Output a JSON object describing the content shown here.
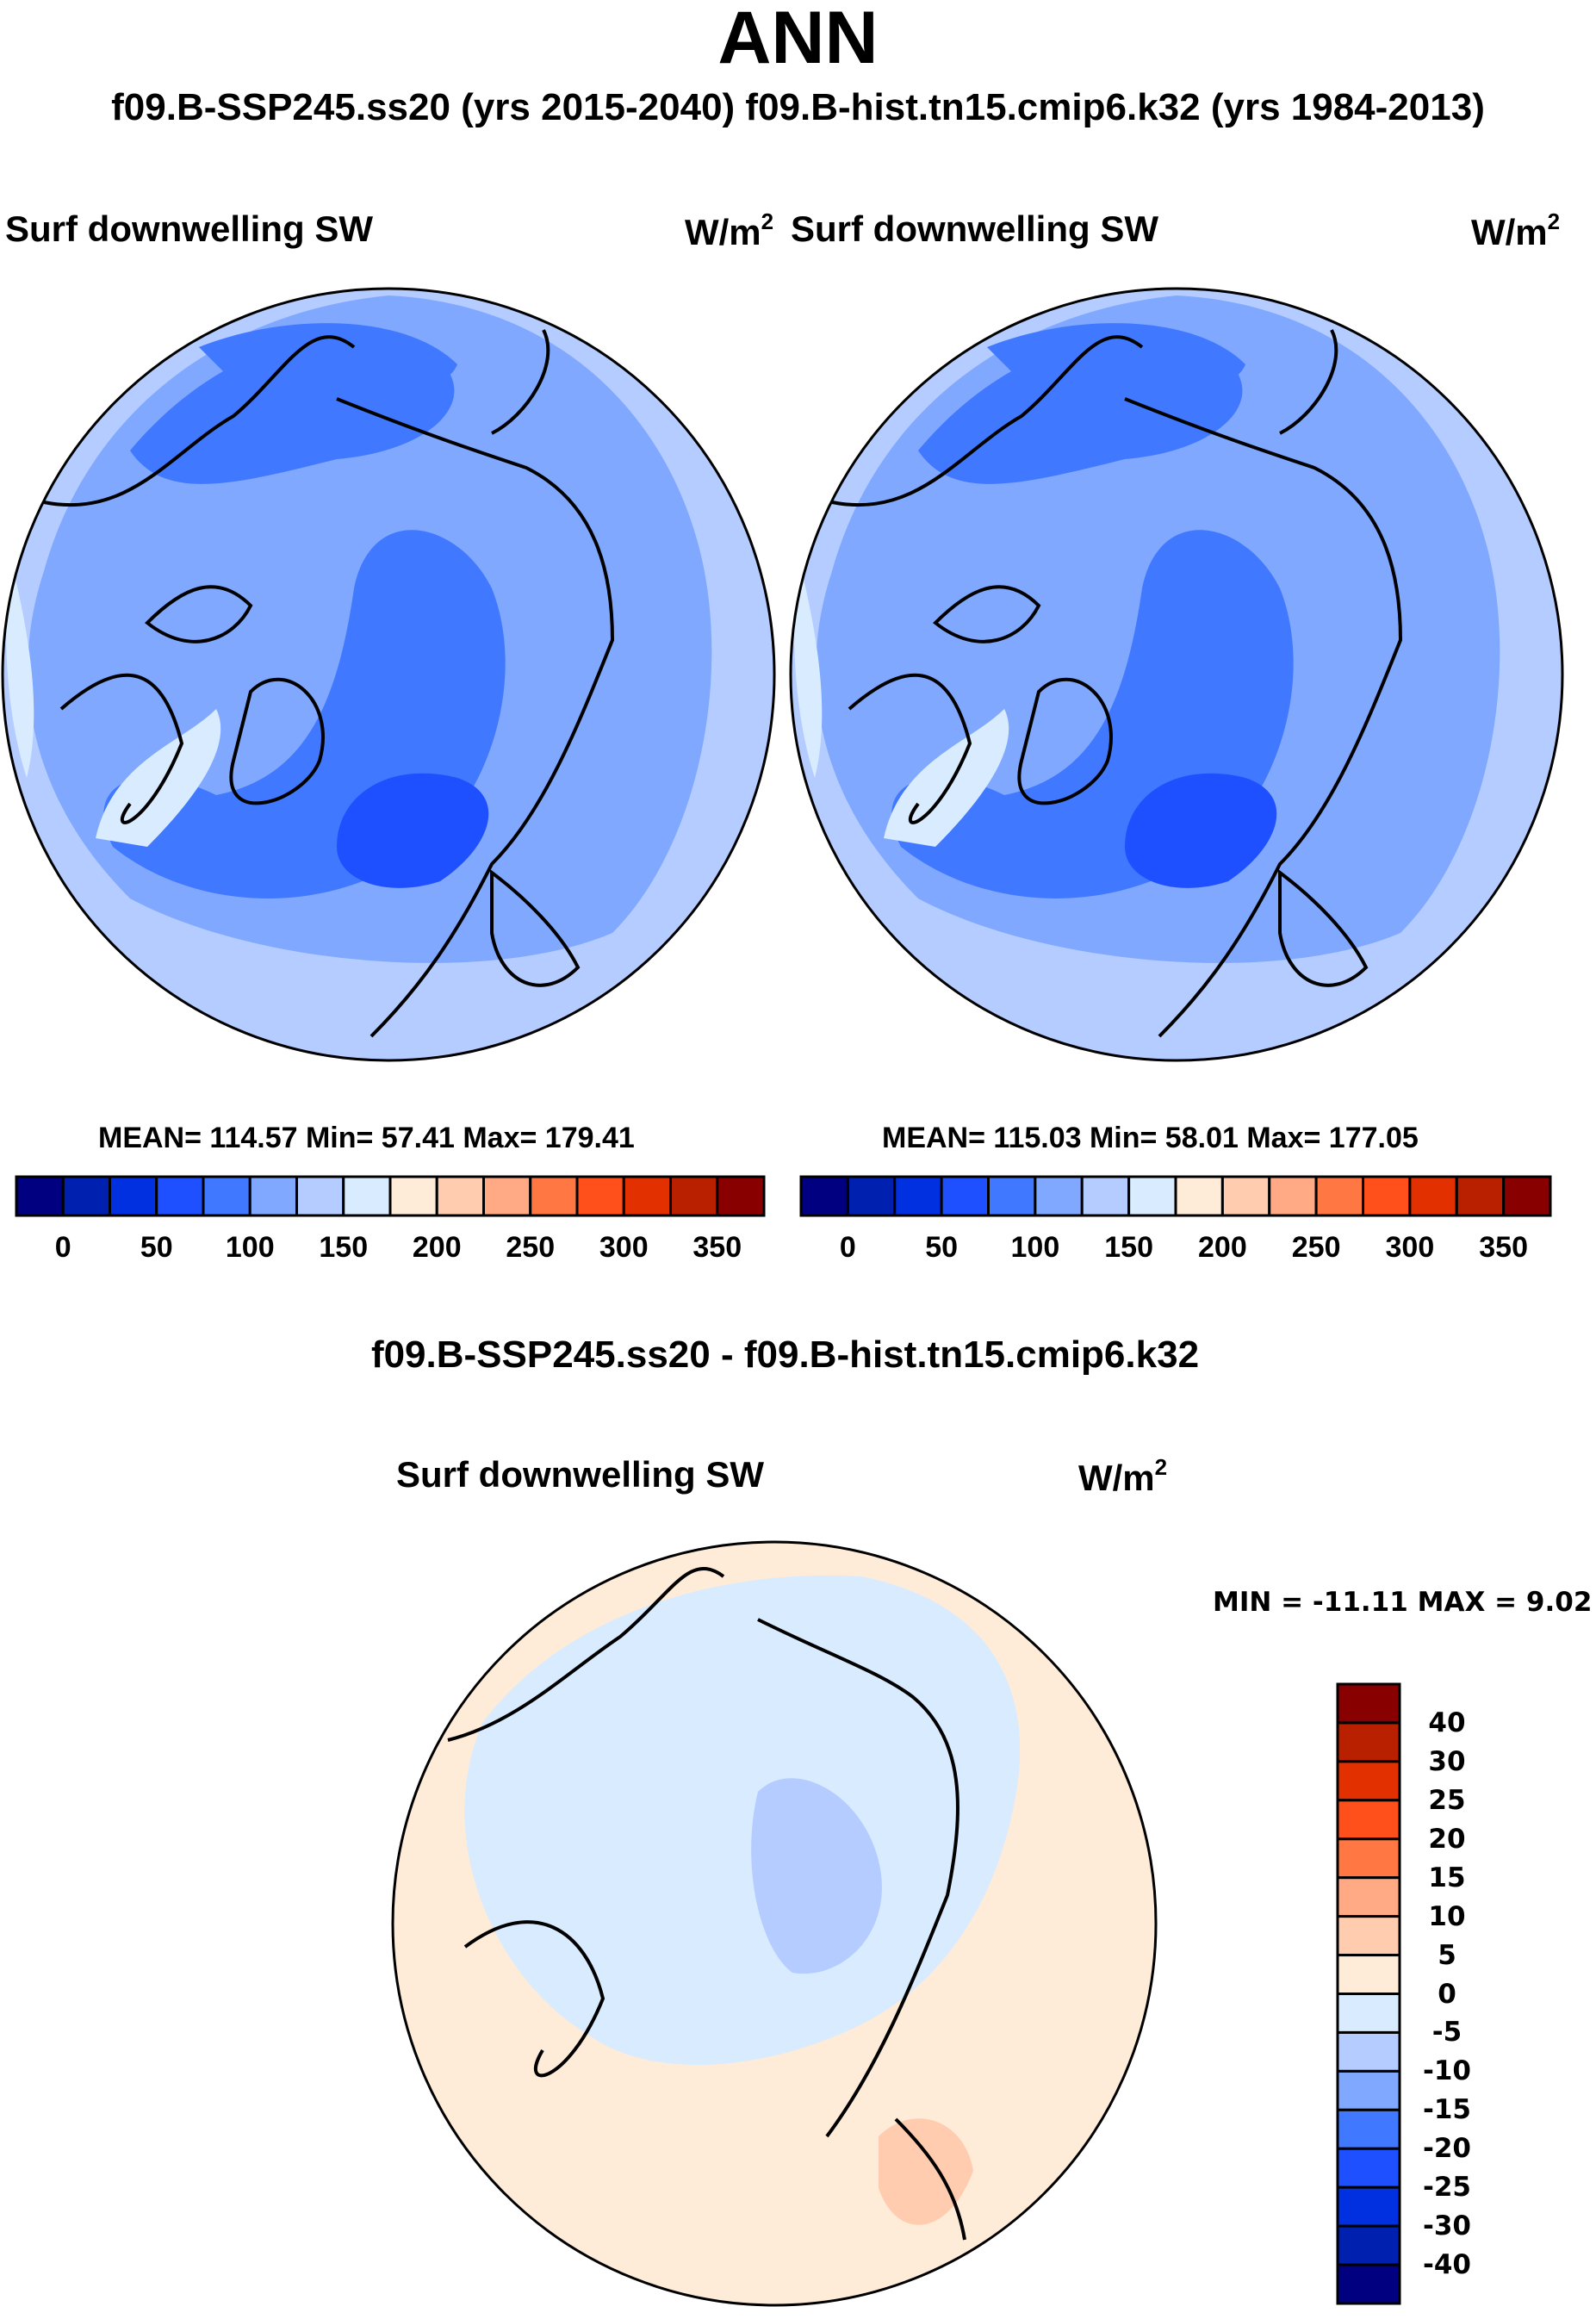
{
  "title": "ANN",
  "subtitle": "f09.B-SSP245.ss20 (yrs 2015-2040)  f09.B-hist.tn15.cmip6.k32 (yrs 1984-2013)",
  "chart_data": [
    {
      "type": "heatmap",
      "panel": "test",
      "title": "Surf downwelling SW",
      "units": "W/m",
      "units_sup": "2",
      "stats": "MEAN= 114.57  Min=  57.41  Max= 179.41",
      "mean": 114.57,
      "min": 57.41,
      "max": 179.41,
      "colorbar_labels": [
        "0",
        "50",
        "100",
        "150",
        "200",
        "250",
        "300",
        "350"
      ]
    },
    {
      "type": "heatmap",
      "panel": "control",
      "title": "Surf downwelling SW",
      "units": "W/m",
      "units_sup": "2",
      "stats": "MEAN= 115.03  Min=  58.01  Max= 177.05",
      "mean": 115.03,
      "min": 58.01,
      "max": 177.05,
      "colorbar_labels": [
        "0",
        "50",
        "100",
        "150",
        "200",
        "250",
        "300",
        "350"
      ]
    },
    {
      "type": "heatmap",
      "panel": "difference",
      "heading": "f09.B-SSP245.ss20 - f09.B-hist.tn15.cmip6.k32",
      "title": "Surf downwelling SW",
      "units": "W/m",
      "units_sup": "2",
      "stats": "MIN = -11.11 MAX =   9.02",
      "min": -11.11,
      "max": 9.02,
      "colorbar_labels": [
        "40",
        "30",
        "25",
        "20",
        "15",
        "10",
        "5",
        "0",
        "-5",
        "-10",
        "-15",
        "-20",
        "-25",
        "-30",
        "-40"
      ]
    }
  ],
  "colors": [
    "#000080",
    "#0020b0",
    "#0030e0",
    "#1e50ff",
    "#4078ff",
    "#80a8ff",
    "#b4ccff",
    "#d8ebff",
    "#ffecd8",
    "#ffccb0",
    "#ffaa84",
    "#ff7844",
    "#ff501c",
    "#e33000",
    "#b82000",
    "#880000"
  ]
}
